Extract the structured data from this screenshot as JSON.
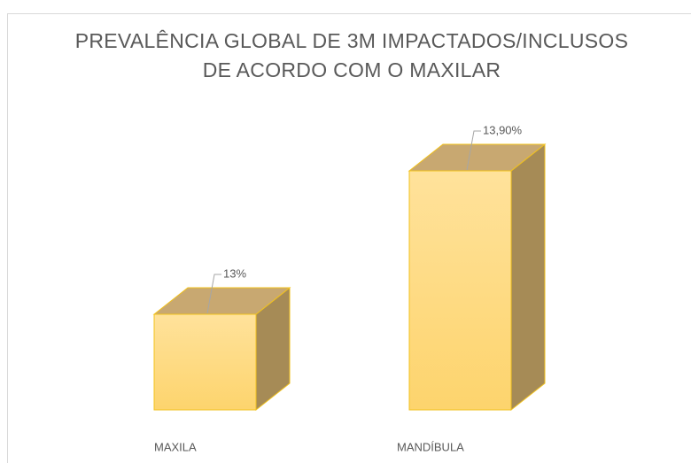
{
  "chart_data": {
    "type": "bar3d",
    "title": [
      "PREVALÊNCIA GLOBAL DE 3M IMPACTADOS/INCLUSOS",
      "DE ACORDO COM O MAXILAR"
    ],
    "categories": [
      "MAXILA",
      "MANDÍBULA"
    ],
    "values": [
      13,
      13.9
    ],
    "value_labels": [
      "13%",
      "13,90%"
    ],
    "color": "#fdd97f",
    "ylim": [
      12.4,
      14
    ]
  }
}
